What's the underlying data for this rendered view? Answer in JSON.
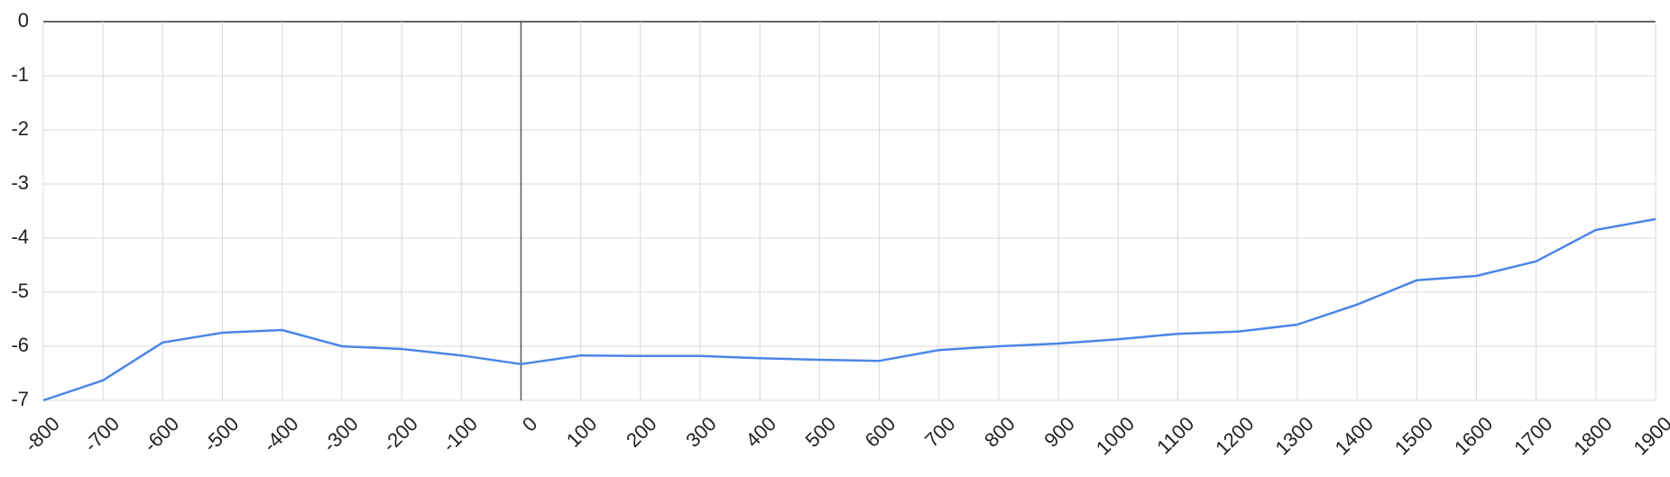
{
  "chart_data": {
    "type": "line",
    "x": [
      -800,
      -700,
      -600,
      -500,
      -400,
      -300,
      -200,
      -100,
      0,
      100,
      200,
      300,
      400,
      500,
      600,
      700,
      800,
      900,
      1000,
      1100,
      1200,
      1300,
      1400,
      1500,
      1600,
      1700,
      1800,
      1900
    ],
    "series": [
      {
        "color": "#4a86e8",
        "values": [
          -7.0,
          -6.63,
          -5.93,
          -5.75,
          -5.7,
          -6.0,
          -6.05,
          -6.17,
          -6.33,
          -6.17,
          -6.18,
          -6.18,
          -6.22,
          -6.25,
          -6.27,
          -6.07,
          -6.0,
          -5.95,
          -5.87,
          -5.77,
          -5.73,
          -5.6,
          -5.23,
          -4.78,
          -4.7,
          -4.43,
          -3.85,
          -3.65
        ]
      }
    ],
    "xlim": [
      -800,
      1900
    ],
    "xticks": [
      -800,
      -700,
      -600,
      -500,
      -400,
      -300,
      -200,
      -100,
      0,
      100,
      200,
      300,
      400,
      500,
      600,
      700,
      800,
      900,
      1000,
      1100,
      1200,
      1300,
      1400,
      1500,
      1600,
      1700,
      1800,
      1900
    ],
    "ylim": [
      -7,
      0
    ],
    "yticks": [
      0,
      -1,
      -2,
      -3,
      -4,
      -5,
      -6,
      -7
    ],
    "grid": true
  }
}
